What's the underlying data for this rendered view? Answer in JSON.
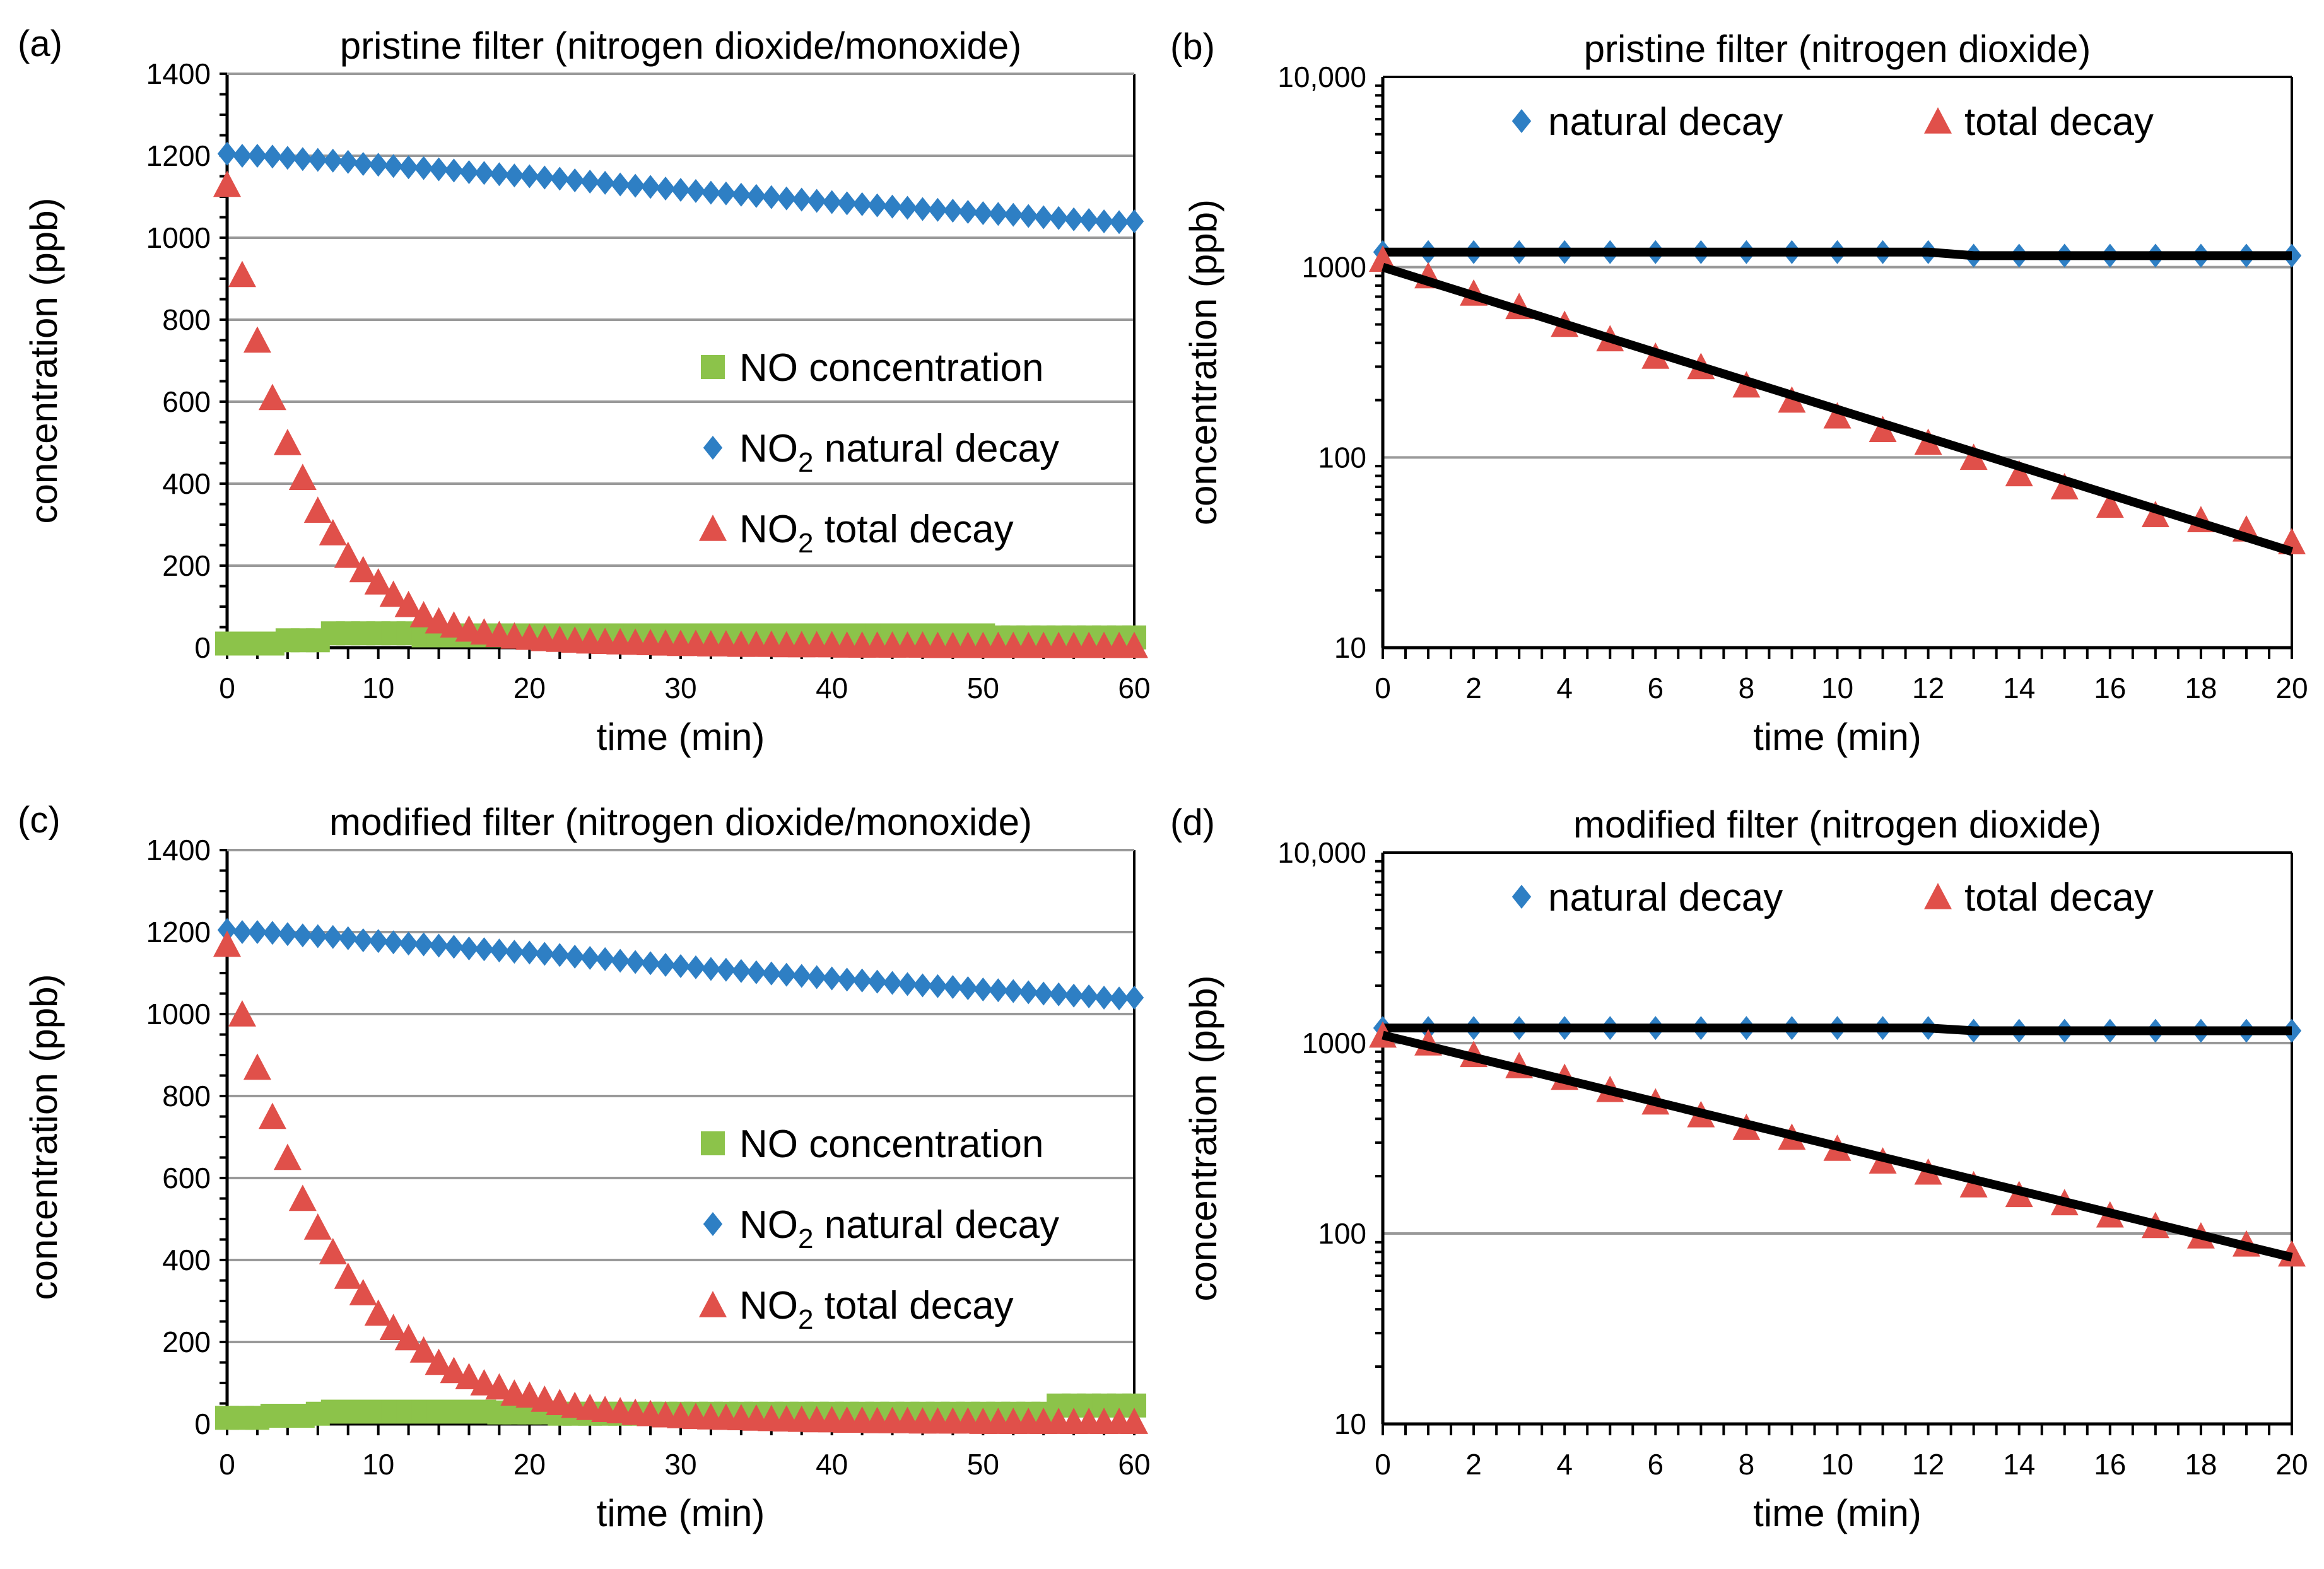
{
  "colors": {
    "natural": "#2e7fc4",
    "total": "#e0504a",
    "no": "#8cc34a",
    "fit": "#000000",
    "grid": "#999999"
  },
  "chart_data": [
    {
      "panel": "(a)",
      "type": "scatter",
      "title": "pristine filter (nitrogen dioxide/monoxide)",
      "xlabel": "time (min)",
      "ylabel": "concentration (ppb)",
      "xlim": [
        0,
        60
      ],
      "ylim": [
        0,
        1400
      ],
      "yscale": "linear",
      "xticks": [
        0,
        10,
        20,
        30,
        40,
        50,
        60
      ],
      "yticks": [
        0,
        200,
        400,
        600,
        800,
        1000,
        1200,
        1400
      ],
      "legend_position": "right-middle",
      "series": [
        {
          "key": "no",
          "marker": "square",
          "label_main": "NO",
          "label_sub": "",
          "label_rest": " concentration",
          "values": [
            10,
            10,
            10,
            10,
            18,
            18,
            18,
            35,
            35,
            35,
            35,
            35,
            35,
            30,
            30,
            30,
            30,
            30,
            30,
            30,
            30,
            30,
            30,
            30,
            30,
            30,
            30,
            30,
            30,
            30,
            30,
            30,
            30,
            30,
            30,
            30,
            30,
            30,
            30,
            30,
            30,
            30,
            30,
            30,
            30,
            30,
            30,
            30,
            30,
            30,
            30,
            25,
            25,
            25,
            25,
            25,
            25,
            25,
            25,
            25,
            25
          ]
        },
        {
          "key": "natural",
          "marker": "diamond",
          "label_main": "NO",
          "label_sub": "2",
          "label_rest": " natural decay",
          "values": [
            1205,
            1200,
            1200,
            1198,
            1195,
            1192,
            1190,
            1188,
            1185,
            1180,
            1178,
            1175,
            1172,
            1170,
            1167,
            1164,
            1160,
            1158,
            1155,
            1152,
            1150,
            1147,
            1144,
            1140,
            1137,
            1134,
            1130,
            1127,
            1124,
            1120,
            1117,
            1114,
            1110,
            1108,
            1105,
            1102,
            1099,
            1096,
            1093,
            1090,
            1087,
            1084,
            1082,
            1079,
            1076,
            1073,
            1070,
            1068,
            1066,
            1063,
            1060,
            1058,
            1056,
            1053,
            1050,
            1048,
            1045,
            1043,
            1040,
            1038,
            1040
          ]
        },
        {
          "key": "total",
          "marker": "triangle",
          "label_main": "NO",
          "label_sub": "2",
          "label_rest": " total decay",
          "values": [
            1130,
            910,
            750,
            610,
            500,
            415,
            335,
            280,
            225,
            190,
            160,
            130,
            105,
            80,
            65,
            55,
            45,
            38,
            32,
            28,
            25,
            22,
            20,
            18,
            16,
            15,
            14,
            13,
            12,
            11,
            10,
            10,
            9,
            9,
            8,
            8,
            8,
            7,
            7,
            7,
            7,
            6,
            6,
            6,
            6,
            6,
            6,
            5,
            5,
            5,
            5,
            5,
            5,
            5,
            5,
            5,
            5,
            5,
            5,
            5,
            5
          ]
        }
      ]
    },
    {
      "panel": "(b)",
      "type": "scatter",
      "title": "pristine filter (nitrogen dioxide)",
      "xlabel": "time (min)",
      "ylabel": "concentration (ppb)",
      "xlim": [
        0,
        20
      ],
      "ylim": [
        10,
        10000
      ],
      "yscale": "log",
      "xticks": [
        0,
        2,
        4,
        6,
        8,
        10,
        12,
        14,
        16,
        18,
        20
      ],
      "yticks": [
        10,
        100,
        1000,
        10000
      ],
      "ytick_labels": [
        "10",
        "100",
        "1000",
        "10,000"
      ],
      "legend_position": "top",
      "series": [
        {
          "key": "natural",
          "marker": "diamond",
          "label_main": "natural decay",
          "label_sub": "",
          "label_rest": "",
          "line": true,
          "values": [
            1200,
            1200,
            1200,
            1200,
            1200,
            1200,
            1200,
            1200,
            1200,
            1200,
            1200,
            1200,
            1200,
            1150,
            1150,
            1150,
            1150,
            1150,
            1150,
            1150,
            1150
          ]
        },
        {
          "key": "total",
          "marker": "triangle",
          "label_main": "total decay",
          "label_sub": "",
          "label_rest": "",
          "values": [
            1100,
            900,
            730,
            620,
            500,
            420,
            340,
            300,
            240,
            200,
            165,
            140,
            120,
            100,
            82,
            70,
            56,
            50,
            47,
            42,
            36
          ]
        }
      ],
      "fit": {
        "x": [
          0,
          20
        ],
        "y": [
          1000,
          32
        ]
      }
    },
    {
      "panel": "(c)",
      "type": "scatter",
      "title": "modified filter (nitrogen dioxide/monoxide)",
      "xlabel": "time (min)",
      "ylabel": "concentration (ppb)",
      "xlim": [
        0,
        60
      ],
      "ylim": [
        0,
        1400
      ],
      "yscale": "linear",
      "xticks": [
        0,
        10,
        20,
        30,
        40,
        50,
        60
      ],
      "yticks": [
        0,
        200,
        400,
        600,
        800,
        1000,
        1200,
        1400
      ],
      "legend_position": "right-middle",
      "series": [
        {
          "key": "no",
          "marker": "square",
          "label_main": "NO",
          "label_sub": "",
          "label_rest": " concentration",
          "values": [
            15,
            15,
            15,
            20,
            20,
            20,
            25,
            30,
            30,
            30,
            30,
            30,
            30,
            30,
            30,
            30,
            30,
            30,
            28,
            28,
            28,
            28,
            25,
            25,
            25,
            25,
            25,
            25,
            25,
            25,
            25,
            25,
            25,
            25,
            25,
            25,
            25,
            25,
            25,
            25,
            25,
            25,
            25,
            25,
            25,
            25,
            25,
            25,
            25,
            25,
            25,
            25,
            25,
            25,
            25,
            45,
            45,
            45,
            45,
            45,
            45
          ]
        },
        {
          "key": "natural",
          "marker": "diamond",
          "label_main": "NO",
          "label_sub": "2",
          "label_rest": " natural decay",
          "values": [
            1205,
            1200,
            1200,
            1198,
            1195,
            1192,
            1190,
            1188,
            1185,
            1180,
            1178,
            1175,
            1172,
            1170,
            1167,
            1164,
            1160,
            1158,
            1155,
            1152,
            1150,
            1147,
            1144,
            1140,
            1137,
            1134,
            1130,
            1127,
            1124,
            1120,
            1117,
            1114,
            1110,
            1108,
            1105,
            1102,
            1099,
            1096,
            1093,
            1090,
            1087,
            1084,
            1082,
            1079,
            1076,
            1073,
            1070,
            1068,
            1066,
            1063,
            1060,
            1058,
            1056,
            1053,
            1050,
            1048,
            1045,
            1043,
            1040,
            1038,
            1040
          ]
        },
        {
          "key": "total",
          "marker": "triangle",
          "label_main": "NO",
          "label_sub": "2",
          "label_rest": " total decay",
          "values": [
            1170,
            1000,
            870,
            750,
            650,
            550,
            480,
            420,
            360,
            320,
            270,
            235,
            210,
            180,
            150,
            130,
            115,
            100,
            90,
            75,
            70,
            60,
            52,
            45,
            40,
            35,
            32,
            28,
            25,
            22,
            20,
            18,
            17,
            16,
            15,
            14,
            13,
            12,
            11,
            10,
            10,
            9,
            9,
            8,
            8,
            8,
            7,
            7,
            7,
            7,
            6,
            6,
            6,
            6,
            6,
            6,
            6,
            6,
            6,
            6,
            6
          ]
        }
      ]
    },
    {
      "panel": "(d)",
      "type": "scatter",
      "title": "modified filter (nitrogen dioxide)",
      "xlabel": "time (min)",
      "ylabel": "concentration (ppb)",
      "xlim": [
        0,
        20
      ],
      "ylim": [
        10,
        10000
      ],
      "yscale": "log",
      "xticks": [
        0,
        2,
        4,
        6,
        8,
        10,
        12,
        14,
        16,
        18,
        20
      ],
      "yticks": [
        10,
        100,
        1000,
        10000
      ],
      "ytick_labels": [
        "10",
        "100",
        "1000",
        "10,000"
      ],
      "legend_position": "top",
      "series": [
        {
          "key": "natural",
          "marker": "diamond",
          "label_main": "natural decay",
          "label_sub": "",
          "label_rest": "",
          "line": true,
          "values": [
            1200,
            1200,
            1200,
            1200,
            1200,
            1200,
            1200,
            1200,
            1200,
            1200,
            1200,
            1200,
            1200,
            1160,
            1160,
            1160,
            1160,
            1160,
            1160,
            1160,
            1160
          ]
        },
        {
          "key": "total",
          "marker": "triangle",
          "label_main": "total decay",
          "label_sub": "",
          "label_rest": "",
          "values": [
            1100,
            1000,
            870,
            760,
            660,
            570,
            490,
            420,
            360,
            320,
            280,
            240,
            210,
            180,
            160,
            145,
            125,
            110,
            97,
            88,
            78
          ]
        }
      ],
      "fit": {
        "x": [
          0,
          20
        ],
        "y": [
          1100,
          75
        ]
      }
    }
  ]
}
